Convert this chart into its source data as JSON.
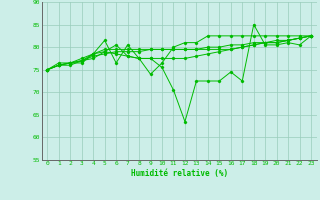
{
  "background_color": "#cceee8",
  "grid_color": "#99ccbb",
  "line_color": "#00bb00",
  "xlabel": "Humidité relative (%)",
  "ylim": [
    55,
    90
  ],
  "xlim": [
    -0.5,
    23.5
  ],
  "yticks": [
    55,
    60,
    65,
    70,
    75,
    80,
    85,
    90
  ],
  "xticks": [
    0,
    1,
    2,
    3,
    4,
    5,
    6,
    7,
    8,
    9,
    10,
    11,
    12,
    13,
    14,
    15,
    16,
    17,
    18,
    19,
    20,
    21,
    22,
    23
  ],
  "series": [
    [
      75.0,
      76.5,
      76.5,
      76.5,
      78.5,
      81.5,
      76.5,
      80.5,
      77.5,
      77.5,
      75.5,
      70.5,
      63.5,
      72.5,
      72.5,
      72.5,
      74.5,
      72.5,
      85.0,
      80.5,
      80.5,
      81.0,
      80.5,
      82.5
    ],
    [
      75.0,
      76.0,
      76.0,
      77.0,
      78.5,
      79.0,
      78.5,
      78.0,
      77.5,
      77.5,
      77.5,
      77.5,
      77.5,
      78.0,
      78.5,
      79.0,
      79.5,
      80.0,
      80.5,
      81.0,
      81.0,
      81.5,
      82.0,
      82.5
    ],
    [
      75.0,
      76.0,
      76.5,
      77.0,
      78.0,
      78.5,
      79.0,
      79.0,
      79.0,
      79.5,
      79.5,
      79.5,
      79.5,
      79.5,
      80.0,
      80.0,
      80.5,
      80.5,
      81.0,
      81.0,
      81.5,
      81.5,
      82.0,
      82.5
    ],
    [
      75.0,
      76.0,
      76.5,
      77.5,
      78.5,
      79.5,
      79.5,
      79.5,
      79.5,
      79.5,
      79.5,
      79.5,
      79.5,
      79.5,
      79.5,
      79.5,
      79.5,
      80.0,
      80.5,
      81.0,
      81.0,
      81.5,
      82.0,
      82.5
    ],
    [
      75.0,
      76.0,
      76.5,
      77.0,
      77.5,
      79.0,
      80.5,
      78.0,
      77.5,
      74.0,
      76.5,
      80.0,
      81.0,
      81.0,
      82.5,
      82.5,
      82.5,
      82.5,
      82.5,
      82.5,
      82.5,
      82.5,
      82.5,
      82.5
    ]
  ]
}
